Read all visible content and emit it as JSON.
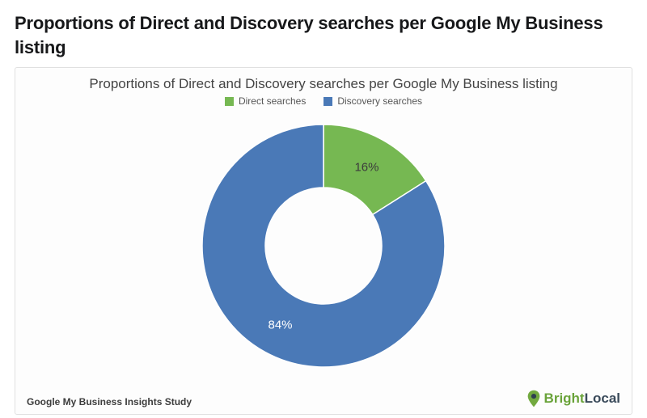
{
  "page": {
    "title": "Proportions of Direct and Discovery searches per Google My Business listing"
  },
  "chart": {
    "type": "donut",
    "title": "Proportions of Direct and Discovery searches per Google My Business listing",
    "title_fontsize": 17,
    "title_color": "#444444",
    "background_color": "#fdfdfd",
    "border_color": "#e0e0e0",
    "outer_radius": 150,
    "inner_radius": 72,
    "start_angle_deg": -90,
    "legend": {
      "position": "top",
      "fontsize": 12,
      "text_color": "#555555",
      "items": [
        {
          "label": "Direct searches",
          "color": "#76b852"
        },
        {
          "label": "Discovery searches",
          "color": "#4a79b7"
        }
      ]
    },
    "slices": [
      {
        "name": "Direct searches",
        "value": 16,
        "color": "#76b852",
        "label": "16%",
        "label_color": "#3c3c3c"
      },
      {
        "name": "Discovery searches",
        "value": 84,
        "color": "#4a79b7",
        "label": "84%",
        "label_color": "#ffffff"
      }
    ],
    "slice_border": {
      "color": "#ffffff",
      "width": 1.5
    },
    "data_label_fontsize": 15
  },
  "footer": {
    "study_text": "Google My Business Insights Study",
    "brand": {
      "part1": "Bright",
      "part2": "Local",
      "color1": "#6aa33a",
      "color2": "#3a4a5a",
      "pin_fill": "#72a93f",
      "pin_dot": "#2f3f4f"
    }
  }
}
